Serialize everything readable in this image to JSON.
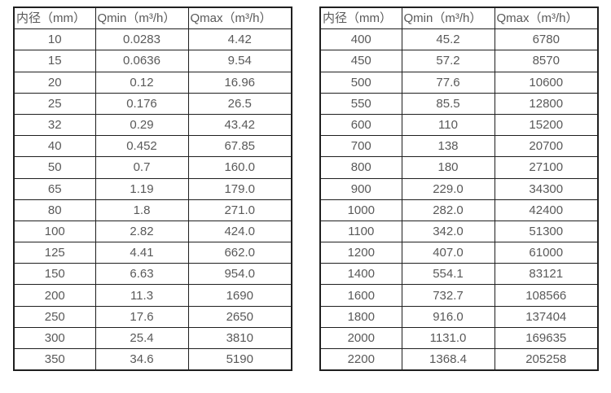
{
  "page": {
    "background_color": "#ffffff",
    "text_color": "#595959",
    "border_color": "#1f1f1f"
  },
  "tables": [
    {
      "name": "flow-table-small-diameters",
      "headers": [
        "内径（mm）",
        "Qmin（m³/h）",
        "Qmax（m³/h）"
      ],
      "rows": [
        [
          "10",
          "0.0283",
          "4.42"
        ],
        [
          "15",
          "0.0636",
          "9.54"
        ],
        [
          "20",
          "0.12",
          "16.96"
        ],
        [
          "25",
          "0.176",
          "26.5"
        ],
        [
          "32",
          "0.29",
          "43.42"
        ],
        [
          "40",
          "0.452",
          "67.85"
        ],
        [
          "50",
          "0.7",
          "160.0"
        ],
        [
          "65",
          "1.19",
          "179.0"
        ],
        [
          "80",
          "1.8",
          "271.0"
        ],
        [
          "100",
          "2.82",
          "424.0"
        ],
        [
          "125",
          "4.41",
          "662.0"
        ],
        [
          "150",
          "6.63",
          "954.0"
        ],
        [
          "200",
          "11.3",
          "1690"
        ],
        [
          "250",
          "17.6",
          "2650"
        ],
        [
          "300",
          "25.4",
          "3810"
        ],
        [
          "350",
          "34.6",
          "5190"
        ]
      ]
    },
    {
      "name": "flow-table-large-diameters",
      "headers": [
        "内径（mm）",
        "Qmin（m³/h）",
        "Qmax（m³/h）"
      ],
      "rows": [
        [
          "400",
          "45.2",
          "6780"
        ],
        [
          "450",
          "57.2",
          "8570"
        ],
        [
          "500",
          "77.6",
          "10600"
        ],
        [
          "550",
          "85.5",
          "12800"
        ],
        [
          "600",
          "110",
          "15200"
        ],
        [
          "700",
          "138",
          "20700"
        ],
        [
          "800",
          "180",
          "27100"
        ],
        [
          "900",
          "229.0",
          "34300"
        ],
        [
          "1000",
          "282.0",
          "42400"
        ],
        [
          "1100",
          "342.0",
          "51300"
        ],
        [
          "1200",
          "407.0",
          "61000"
        ],
        [
          "1400",
          "554.1",
          "83121"
        ],
        [
          "1600",
          "732.7",
          "108566"
        ],
        [
          "1800",
          "916.0",
          "137404"
        ],
        [
          "2000",
          "1131.0",
          "169635"
        ],
        [
          "2200",
          "1368.4",
          "205258"
        ]
      ]
    }
  ]
}
